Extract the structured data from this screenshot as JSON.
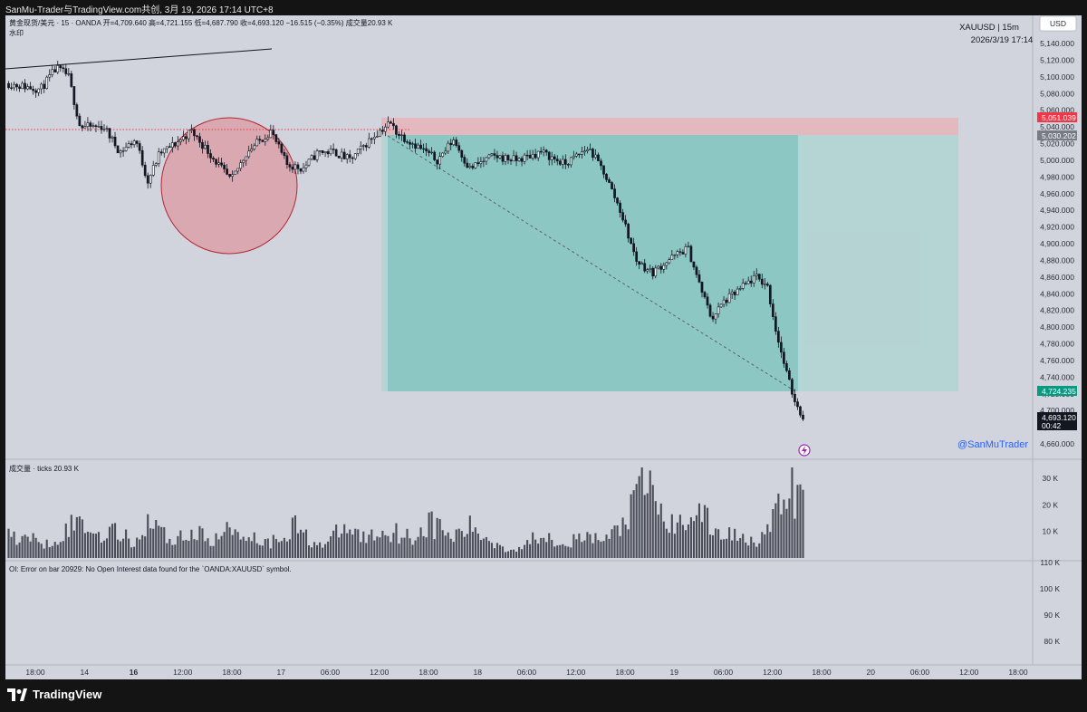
{
  "header": {
    "title": "SanMu-Trader与TradingView.com共创, 3月 19, 2026 17:14 UTC+8"
  },
  "legend": {
    "line1": "黄金现货/美元 · 15 · OANDA  开=4,709.640  高=4,721.155  低=4,687.790  收=4,693.120  −16.515 (−0.35%)  成交量20.93 K",
    "line2": "水印",
    "symbol_info": "XAUUSD | 15m",
    "symbol_date": "2026/3/19 17:14",
    "currency": "USD",
    "volume_label": "成交量 · ticks  20.93 K",
    "oi_error": "OI: Error on bar 20929: No Open Interest data found for the `OANDA:XAUUSD` symbol.",
    "handle": "@SanMuTrader"
  },
  "price_tags": [
    {
      "value": "5,051.039",
      "color": "#f23645"
    },
    {
      "value": "5,030.202",
      "color": "#787b86"
    },
    {
      "value": "4,724.235",
      "color": "#089981"
    },
    {
      "value": "4,693.120",
      "sub": "00:42",
      "color": "#131722"
    }
  ],
  "colors": {
    "stop_zone": "#f2a0a8",
    "target_zone": "#26a69a",
    "circle": "#f23645",
    "candles": "#131722",
    "volume": "#4a4d57"
  },
  "chart_data": {
    "type": "candlestick",
    "symbol": "XAUUSD",
    "interval": "15m",
    "price_ylim": [
      4650,
      5150
    ],
    "price_ticks": [
      5140,
      5120,
      5100,
      5080,
      5060,
      5040,
      5020,
      5000,
      4980,
      4960,
      4940,
      4920,
      4900,
      4880,
      4860,
      4840,
      4820,
      4800,
      4780,
      4760,
      4740,
      4720,
      4700,
      4680,
      4660
    ],
    "price_tick_labels": [
      "5,140.000",
      "5,120.000",
      "5,100.000",
      "5,080.000",
      "5,060.000",
      "5,040.000",
      "5,020.000",
      "5,000.000",
      "4,980.000",
      "4,960.000",
      "4,940.000",
      "4,920.000",
      "4,900.000",
      "4,880.000",
      "4,860.000",
      "4,840.000",
      "4,820.000",
      "4,800.000",
      "4,780.000",
      "4,760.000",
      "4,740.000",
      "4,720.000",
      "4,700.000",
      "4,680.000",
      "4,660.000"
    ],
    "x_labels": [
      "18:00",
      "14",
      "16",
      "12:00",
      "18:00",
      "17",
      "06:00",
      "12:00",
      "18:00",
      "18",
      "06:00",
      "12:00",
      "18:00",
      "19",
      "06:00",
      "12:00",
      "18:00",
      "20",
      "06:00",
      "12:00",
      "18:00"
    ],
    "x_label_bold": "16",
    "price_path": [
      [
        0,
        5092
      ],
      [
        0.04,
        5085
      ],
      [
        0.06,
        5110
      ],
      [
        0.075,
        5102
      ],
      [
        0.09,
        5040
      ],
      [
        0.12,
        5040
      ],
      [
        0.14,
        5010
      ],
      [
        0.16,
        5025
      ],
      [
        0.175,
        4975
      ],
      [
        0.19,
        5008
      ],
      [
        0.21,
        5020
      ],
      [
        0.23,
        5035
      ],
      [
        0.25,
        5012
      ],
      [
        0.28,
        4975
      ],
      [
        0.3,
        5010
      ],
      [
        0.33,
        5035
      ],
      [
        0.35,
        4995
      ],
      [
        0.37,
        4990
      ],
      [
        0.39,
        5010
      ],
      [
        0.41,
        5010
      ],
      [
        0.43,
        5000
      ],
      [
        0.46,
        5030
      ],
      [
        0.48,
        5045
      ],
      [
        0.49,
        5032
      ],
      [
        0.51,
        5020
      ],
      [
        0.54,
        5000
      ],
      [
        0.56,
        5025
      ],
      [
        0.58,
        4990
      ],
      [
        0.61,
        5005
      ],
      [
        0.64,
        5000
      ],
      [
        0.67,
        5010
      ],
      [
        0.7,
        4995
      ],
      [
        0.73,
        5015
      ],
      [
        0.75,
        4985
      ],
      [
        0.77,
        4940
      ],
      [
        0.79,
        4880
      ],
      [
        0.81,
        4865
      ],
      [
        0.83,
        4880
      ],
      [
        0.855,
        4895
      ],
      [
        0.87,
        4850
      ],
      [
        0.885,
        4810
      ],
      [
        0.9,
        4830
      ],
      [
        0.92,
        4845
      ],
      [
        0.94,
        4860
      ],
      [
        0.955,
        4850
      ],
      [
        0.965,
        4800
      ],
      [
        0.975,
        4760
      ],
      [
        0.985,
        4725
      ],
      [
        0.995,
        4700
      ],
      [
        1.0,
        4693
      ]
    ],
    "volume_ylim": [
      0,
      34000
    ],
    "volume_ticks": [
      30000,
      20000,
      10000
    ],
    "volume_tick_labels": [
      "30 K",
      "20 K",
      "10 K"
    ],
    "volume_profile": [
      [
        0,
        9
      ],
      [
        0.05,
        6
      ],
      [
        0.09,
        15
      ],
      [
        0.11,
        9
      ],
      [
        0.13,
        11
      ],
      [
        0.16,
        6
      ],
      [
        0.18,
        17
      ],
      [
        0.2,
        7
      ],
      [
        0.23,
        10
      ],
      [
        0.26,
        7
      ],
      [
        0.28,
        12
      ],
      [
        0.31,
        8
      ],
      [
        0.33,
        6
      ],
      [
        0.36,
        13
      ],
      [
        0.38,
        7
      ],
      [
        0.4,
        5
      ],
      [
        0.42,
        12
      ],
      [
        0.45,
        8
      ],
      [
        0.48,
        11
      ],
      [
        0.51,
        8
      ],
      [
        0.53,
        14
      ],
      [
        0.56,
        8
      ],
      [
        0.58,
        12
      ],
      [
        0.6,
        8
      ],
      [
        0.63,
        3
      ],
      [
        0.65,
        5
      ],
      [
        0.67,
        10
      ],
      [
        0.7,
        6
      ],
      [
        0.73,
        8
      ],
      [
        0.75,
        7
      ],
      [
        0.77,
        12
      ],
      [
        0.79,
        22
      ],
      [
        0.8,
        32
      ],
      [
        0.81,
        26
      ],
      [
        0.82,
        18
      ],
      [
        0.84,
        11
      ],
      [
        0.86,
        20
      ],
      [
        0.875,
        16
      ],
      [
        0.89,
        10
      ],
      [
        0.92,
        9
      ],
      [
        0.94,
        7
      ],
      [
        0.96,
        12
      ],
      [
        0.97,
        20
      ],
      [
        0.985,
        26
      ],
      [
        1.0,
        21
      ]
    ],
    "oi_ylim": [
      70000,
      115000
    ],
    "oi_ticks": [
      110000,
      100000,
      90000,
      80000
    ],
    "oi_tick_labels": [
      "110 K",
      "100 K",
      "90 K",
      "80 K"
    ],
    "position": {
      "side": "short",
      "entry": 5030.202,
      "stop": 5051.039,
      "target": 4724.235
    }
  }
}
